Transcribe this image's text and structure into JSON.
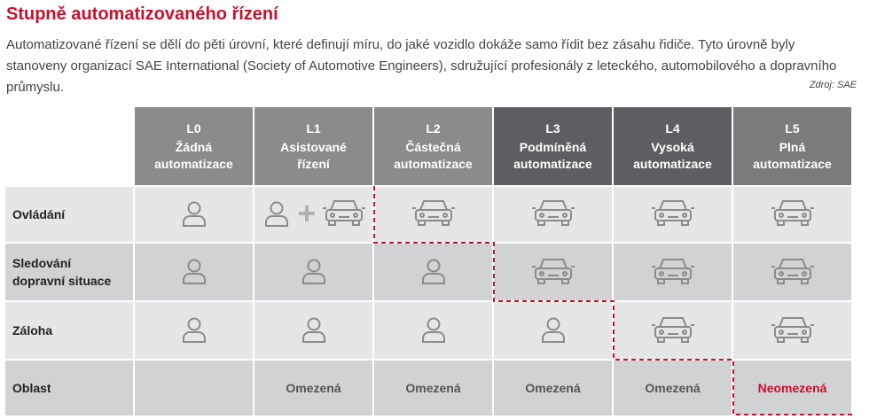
{
  "header": {
    "title": "Stupně automatizovaného řízení",
    "description": "Automatizované řízení se dělí do pěti úrovní, které definují míru, do jaké vozidlo dokáže samo řídit bez zásahu řidiče. Tyto úrovně byly stanoveny organizací SAE International (Society of Automotive Engineers), sdružující profesionály z leteckého, automobilového a dopravního průmyslu.",
    "source": "Zdroj: SAE"
  },
  "table": {
    "columns": [
      {
        "level": "L0",
        "name": "Žádná automatizace"
      },
      {
        "level": "L1",
        "name": "Asistované řízení"
      },
      {
        "level": "L2",
        "name": "Částečná automatizace"
      },
      {
        "level": "L3",
        "name": "Podmíněná automatizace"
      },
      {
        "level": "L4",
        "name": "Vysoká automatizace"
      },
      {
        "level": "L5",
        "name": "Plná automatizace"
      }
    ],
    "rows": [
      {
        "label": "Ovládání"
      },
      {
        "label": "Sledování dopravní situace"
      },
      {
        "label": "Záloha"
      },
      {
        "label": "Oblast",
        "cells": [
          null,
          "Omezená",
          "Omezená",
          "Omezená",
          "Omezená",
          "Neomezená"
        ]
      }
    ]
  }
}
